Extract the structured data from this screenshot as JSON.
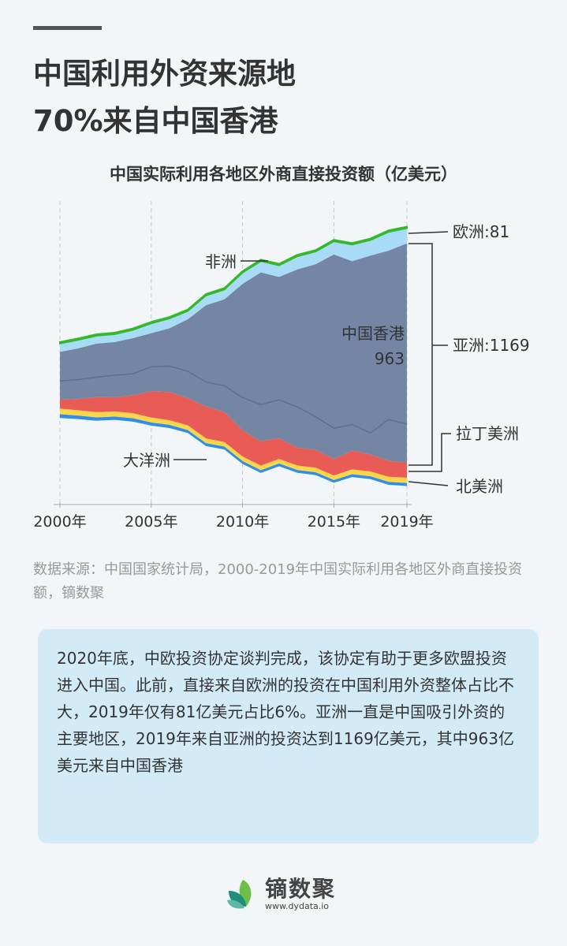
{
  "header": {
    "title_line1": "中国利用外资来源地",
    "title_line2": "70%来自中国香港"
  },
  "chart_data": {
    "type": "area",
    "subtype": "streamgraph",
    "title": "中国实际利用各地区外商直接投资额（亿美元）",
    "x": [
      2000,
      2001,
      2002,
      2003,
      2004,
      2005,
      2006,
      2007,
      2008,
      2009,
      2010,
      2011,
      2012,
      2013,
      2014,
      2015,
      2016,
      2017,
      2018,
      2019
    ],
    "x_tick_labels": [
      "2000年",
      "2005年",
      "2010年",
      "2015年",
      "2019年"
    ],
    "x_ticks": [
      2000,
      2005,
      2010,
      2015,
      2019
    ],
    "grid": "vertical dashed",
    "series": [
      {
        "name": "北美洲",
        "color": "#2f8fe8",
        "values": [
          20,
          19,
          18,
          18,
          18,
          17,
          17,
          16,
          16,
          16,
          16,
          15,
          15,
          15,
          15,
          15,
          15,
          15,
          16,
          16
        ]
      },
      {
        "name": "大洋洲",
        "color": "#fbd54a",
        "values": [
          30,
          28,
          28,
          27,
          27,
          26,
          25,
          25,
          25,
          24,
          24,
          24,
          24,
          24,
          24,
          24,
          26,
          26,
          27,
          28
        ]
      },
      {
        "name": "拉丁美洲",
        "color": "#e95b55",
        "values": [
          47,
          60,
          80,
          75,
          95,
          140,
          150,
          145,
          170,
          160,
          140,
          130,
          110,
          95,
          95,
          88,
          100,
          90,
          85,
          80
        ]
      },
      {
        "name": "亚洲",
        "color": "#7585a4",
        "values": [
          255,
          270,
          285,
          295,
          305,
          310,
          340,
          420,
          540,
          600,
          780,
          900,
          860,
          950,
          990,
          1090,
          1010,
          1060,
          1120,
          1169
        ]
      },
      {
        "name": "欧洲",
        "color": "#a8dbf5",
        "values": [
          45,
          45,
          42,
          42,
          44,
          52,
          52,
          44,
          52,
          52,
          60,
          60,
          62,
          70,
          67,
          70,
          88,
          83,
          100,
          81
        ]
      },
      {
        "name": "非洲",
        "color": "#37b82c",
        "values": [
          8,
          8,
          8,
          8,
          8,
          8,
          8,
          8,
          8,
          8,
          8,
          8,
          8,
          8,
          8,
          8,
          8,
          8,
          8,
          8
        ]
      }
    ],
    "sub_series": {
      "name": "中国香港",
      "parent": "亚洲",
      "values": [
        155,
        167,
        179,
        177,
        190,
        179,
        202,
        277,
        410,
        460,
        606,
        705,
        655,
        733,
        813,
        926,
        871,
        945,
        900,
        963
      ]
    },
    "annotations": {
      "africa": "非洲",
      "oceania": "大洋洲",
      "hk_name": "中国香港",
      "hk_value": "963",
      "europe": "欧洲:81",
      "asia": "亚洲:1169",
      "latam": "拉丁美洲",
      "namerica": "北美洲"
    }
  },
  "source": "数据来源：中国国家统计局，2000-2019年中国实际利用各地区外商直接投资额，镝数聚",
  "note": "2020年底，中欧投资协定谈判完成，该协定有助于更多欧盟投资进入中国。此前，直接来自欧洲的投资在中国利用外资整体占比不大，2019年仅有81亿美元占比6%。亚洲一直是中国吸引外资的主要地区，2019年来自亚洲的投资达到1169亿美元，其中963亿美元来自中国香港",
  "logo": {
    "name": "镝数聚",
    "url": "www.dydata.io",
    "colors": [
      "#5cb85c",
      "#1e8f7a"
    ]
  }
}
